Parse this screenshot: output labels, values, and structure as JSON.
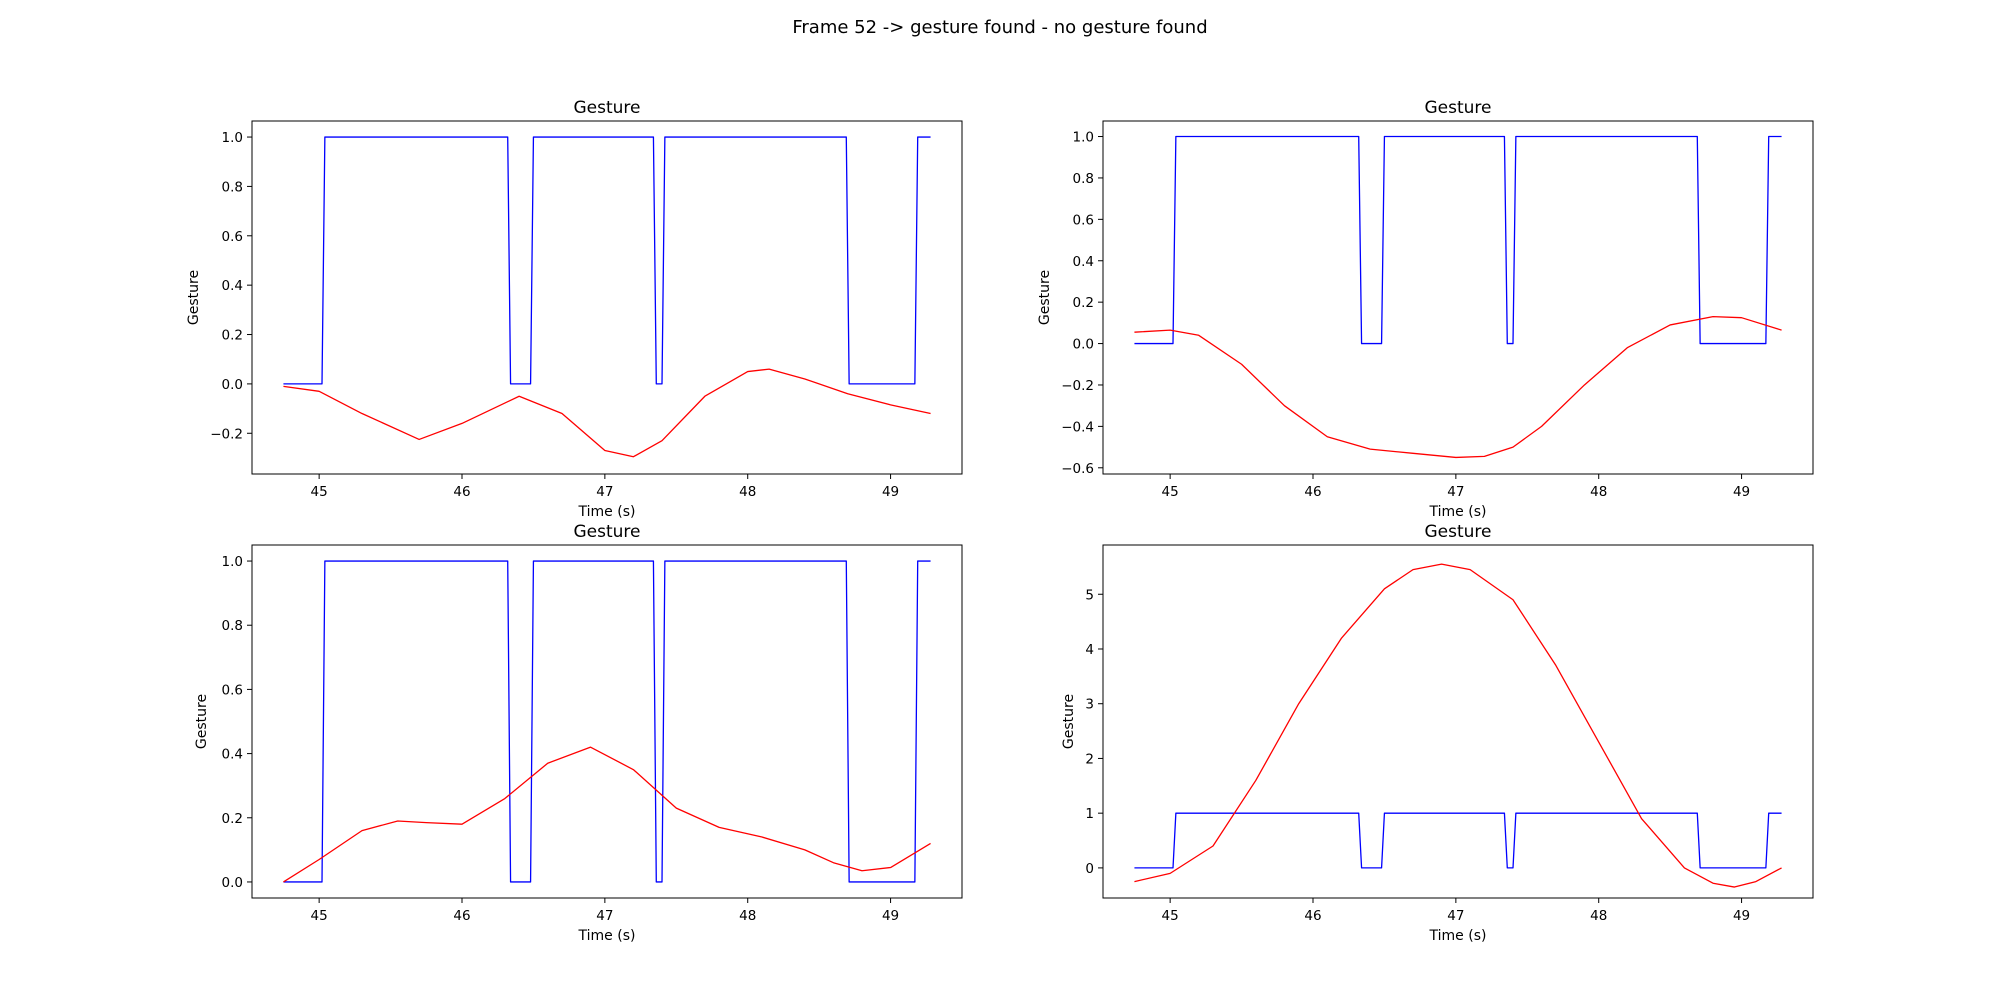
{
  "figure": {
    "suptitle": "Frame 52 -> gesture found - no gesture found"
  },
  "chart_data": [
    {
      "type": "line",
      "title": "Gesture",
      "xlabel": "Time (s)",
      "ylabel": "Gesture",
      "xlim": [
        44.53,
        49.5
      ],
      "ylim": [
        -0.365,
        1.065
      ],
      "xticks": [
        45,
        46,
        47,
        48,
        49
      ],
      "yticks": [
        -0.2,
        0.0,
        0.2,
        0.4,
        0.6,
        0.8,
        1.0
      ],
      "series": [
        {
          "color": "#0000ff",
          "x": [
            44.75,
            45.02,
            45.04,
            46.32,
            46.34,
            46.48,
            46.5,
            47.34,
            47.36,
            47.4,
            47.42,
            48.69,
            48.71,
            49.17,
            49.19,
            49.28
          ],
          "y": [
            0,
            0,
            1,
            1,
            0,
            0,
            1,
            1,
            0,
            0,
            1,
            1,
            0,
            0,
            1,
            1
          ]
        },
        {
          "color": "#ff0000",
          "x": [
            44.75,
            45.0,
            45.3,
            45.7,
            46.0,
            46.4,
            46.7,
            47.0,
            47.2,
            47.4,
            47.7,
            48.0,
            48.15,
            48.4,
            48.7,
            49.0,
            49.28
          ],
          "y": [
            -0.01,
            -0.03,
            -0.12,
            -0.225,
            -0.16,
            -0.05,
            -0.12,
            -0.27,
            -0.295,
            -0.23,
            -0.05,
            0.05,
            0.06,
            0.02,
            -0.04,
            -0.085,
            -0.12
          ]
        }
      ]
    },
    {
      "type": "line",
      "title": "Gesture",
      "xlabel": "Time (s)",
      "ylabel": "Gesture",
      "xlim": [
        44.53,
        49.5
      ],
      "ylim": [
        -0.63,
        1.075
      ],
      "xticks": [
        45,
        46,
        47,
        48,
        49
      ],
      "yticks": [
        -0.6,
        -0.4,
        -0.2,
        0.0,
        0.2,
        0.4,
        0.6,
        0.8,
        1.0
      ],
      "series": [
        {
          "color": "#0000ff",
          "x": [
            44.75,
            45.02,
            45.04,
            46.32,
            46.34,
            46.48,
            46.5,
            47.34,
            47.36,
            47.4,
            47.42,
            48.69,
            48.71,
            49.17,
            49.19,
            49.28
          ],
          "y": [
            0,
            0,
            1,
            1,
            0,
            0,
            1,
            1,
            0,
            0,
            1,
            1,
            0,
            0,
            1,
            1
          ]
        },
        {
          "color": "#ff0000",
          "x": [
            44.75,
            45.0,
            45.2,
            45.5,
            45.8,
            46.1,
            46.4,
            46.7,
            47.0,
            47.2,
            47.4,
            47.6,
            47.9,
            48.2,
            48.5,
            48.8,
            49.0,
            49.28
          ],
          "y": [
            0.055,
            0.065,
            0.04,
            -0.1,
            -0.3,
            -0.45,
            -0.51,
            -0.53,
            -0.55,
            -0.545,
            -0.5,
            -0.4,
            -0.2,
            -0.02,
            0.09,
            0.13,
            0.125,
            0.065
          ]
        }
      ]
    },
    {
      "type": "line",
      "title": "Gesture",
      "xlabel": "Time (s)",
      "ylabel": "Gesture",
      "xlim": [
        44.53,
        49.5
      ],
      "ylim": [
        -0.05,
        1.05
      ],
      "xticks": [
        45,
        46,
        47,
        48,
        49
      ],
      "yticks": [
        0.0,
        0.2,
        0.4,
        0.6,
        0.8,
        1.0
      ],
      "series": [
        {
          "color": "#0000ff",
          "x": [
            44.75,
            45.02,
            45.04,
            46.32,
            46.34,
            46.48,
            46.5,
            47.34,
            47.36,
            47.4,
            47.42,
            48.69,
            48.71,
            49.17,
            49.19,
            49.28
          ],
          "y": [
            0,
            0,
            1,
            1,
            0,
            0,
            1,
            1,
            0,
            0,
            1,
            1,
            0,
            0,
            1,
            1
          ]
        },
        {
          "color": "#ff0000",
          "x": [
            44.75,
            45.0,
            45.3,
            45.55,
            45.75,
            46.0,
            46.3,
            46.6,
            46.9,
            47.2,
            47.5,
            47.8,
            48.1,
            48.4,
            48.6,
            48.8,
            49.0,
            49.28
          ],
          "y": [
            0.0,
            0.07,
            0.16,
            0.19,
            0.185,
            0.18,
            0.26,
            0.37,
            0.42,
            0.35,
            0.23,
            0.17,
            0.14,
            0.1,
            0.06,
            0.035,
            0.045,
            0.12
          ]
        }
      ]
    },
    {
      "type": "line",
      "title": "Gesture",
      "xlabel": "Time (s)",
      "ylabel": "Gesture",
      "xlim": [
        44.53,
        49.5
      ],
      "ylim": [
        -0.55,
        5.9
      ],
      "xticks": [
        45,
        46,
        47,
        48,
        49
      ],
      "yticks": [
        0,
        1,
        2,
        3,
        4,
        5
      ],
      "series": [
        {
          "color": "#0000ff",
          "x": [
            44.75,
            45.02,
            45.04,
            46.32,
            46.34,
            46.48,
            46.5,
            47.34,
            47.36,
            47.4,
            47.42,
            48.69,
            48.71,
            49.17,
            49.19,
            49.28
          ],
          "y": [
            0,
            0,
            1,
            1,
            0,
            0,
            1,
            1,
            0,
            0,
            1,
            1,
            0,
            0,
            1,
            1
          ]
        },
        {
          "color": "#ff0000",
          "x": [
            44.75,
            45.0,
            45.3,
            45.6,
            45.9,
            46.2,
            46.5,
            46.7,
            46.9,
            47.1,
            47.4,
            47.7,
            48.0,
            48.3,
            48.6,
            48.8,
            48.95,
            49.1,
            49.28
          ],
          "y": [
            -0.25,
            -0.1,
            0.4,
            1.6,
            3.0,
            4.2,
            5.1,
            5.45,
            5.55,
            5.45,
            4.9,
            3.7,
            2.3,
            0.9,
            0.0,
            -0.28,
            -0.35,
            -0.25,
            0.0
          ]
        }
      ]
    }
  ]
}
